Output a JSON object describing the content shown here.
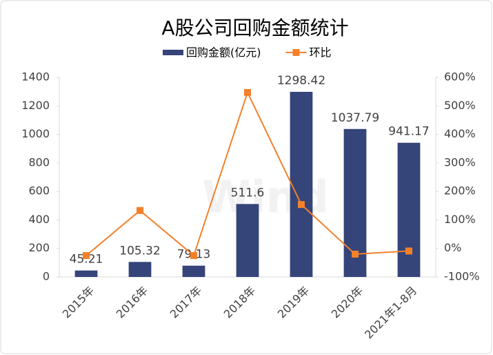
{
  "chart_data": {
    "type": "combo",
    "title": "A股公司回购金额统计",
    "watermark": "Wind",
    "categories": [
      "2015年",
      "2016年",
      "2017年",
      "2018年",
      "2019年",
      "2020年",
      "2021年1-8月"
    ],
    "series": [
      {
        "name": "回购金额(亿元)",
        "type": "bar",
        "color": "#354479",
        "values": [
          45.21,
          105.32,
          79.13,
          511.6,
          1298.42,
          1037.79,
          941.17
        ]
      },
      {
        "name": "环比",
        "type": "line",
        "axis": "y2",
        "color": "#f4802a",
        "values": [
          -25,
          133,
          -25,
          547,
          154,
          -20,
          -9
        ]
      }
    ],
    "ylim": [
      0,
      1400
    ],
    "yticks": [
      0,
      200,
      400,
      600,
      800,
      1000,
      1200,
      1400
    ],
    "y2lim": [
      -100,
      600
    ],
    "y2ticks": [
      {
        "value": -100,
        "label": "-100%"
      },
      {
        "value": 0,
        "label": "0%"
      },
      {
        "value": 100,
        "label": "100%"
      },
      {
        "value": 200,
        "label": "200%"
      },
      {
        "value": 300,
        "label": "300%"
      },
      {
        "value": 400,
        "label": "400%"
      },
      {
        "value": 500,
        "label": "500%"
      },
      {
        "value": 600,
        "label": "600%"
      }
    ],
    "grid": false,
    "legend": "top"
  }
}
